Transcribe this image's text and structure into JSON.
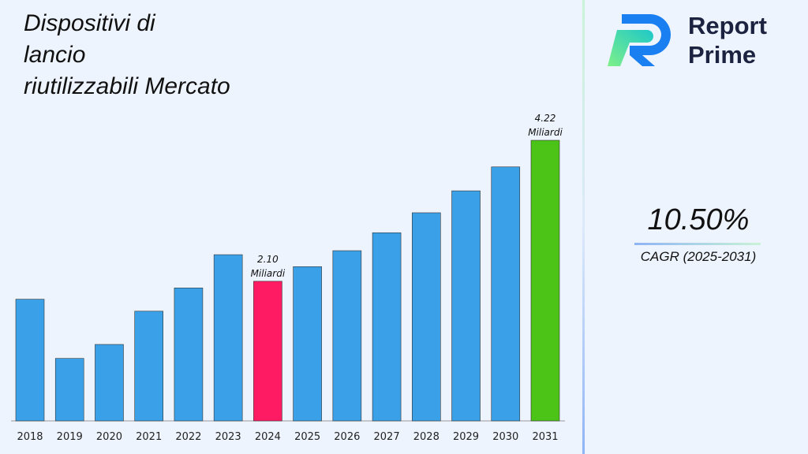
{
  "chart_data": {
    "type": "bar",
    "title": "Dispositivi di lancio riutilizzabili Mercato",
    "categories": [
      "2018",
      "2019",
      "2020",
      "2021",
      "2022",
      "2023",
      "2024",
      "2025",
      "2026",
      "2027",
      "2028",
      "2029",
      "2030",
      "2031"
    ],
    "values": [
      1.83,
      0.94,
      1.15,
      1.65,
      2.0,
      2.5,
      2.1,
      2.32,
      2.56,
      2.83,
      3.13,
      3.46,
      3.82,
      4.22
    ],
    "ylim": [
      0,
      4.5
    ],
    "grid": false,
    "colors": {
      "default": "#3aa0e8",
      "highlight_2024": "#ff1a64",
      "highlight_2031": "#4cc417"
    },
    "annotations": [
      {
        "category": "2024",
        "value_text": "2.10",
        "unit_text": "Miliardi"
      },
      {
        "category": "2031",
        "value_text": "4.22",
        "unit_text": "Miliardi"
      }
    ]
  },
  "title_lines": [
    "Dispositivi di",
    "lancio",
    "riutilizzabili Mercato"
  ],
  "logo": {
    "line1": "Report",
    "line2": "Prime"
  },
  "cagr": {
    "value": "10.50%",
    "label": "CAGR (2025-2031)"
  }
}
